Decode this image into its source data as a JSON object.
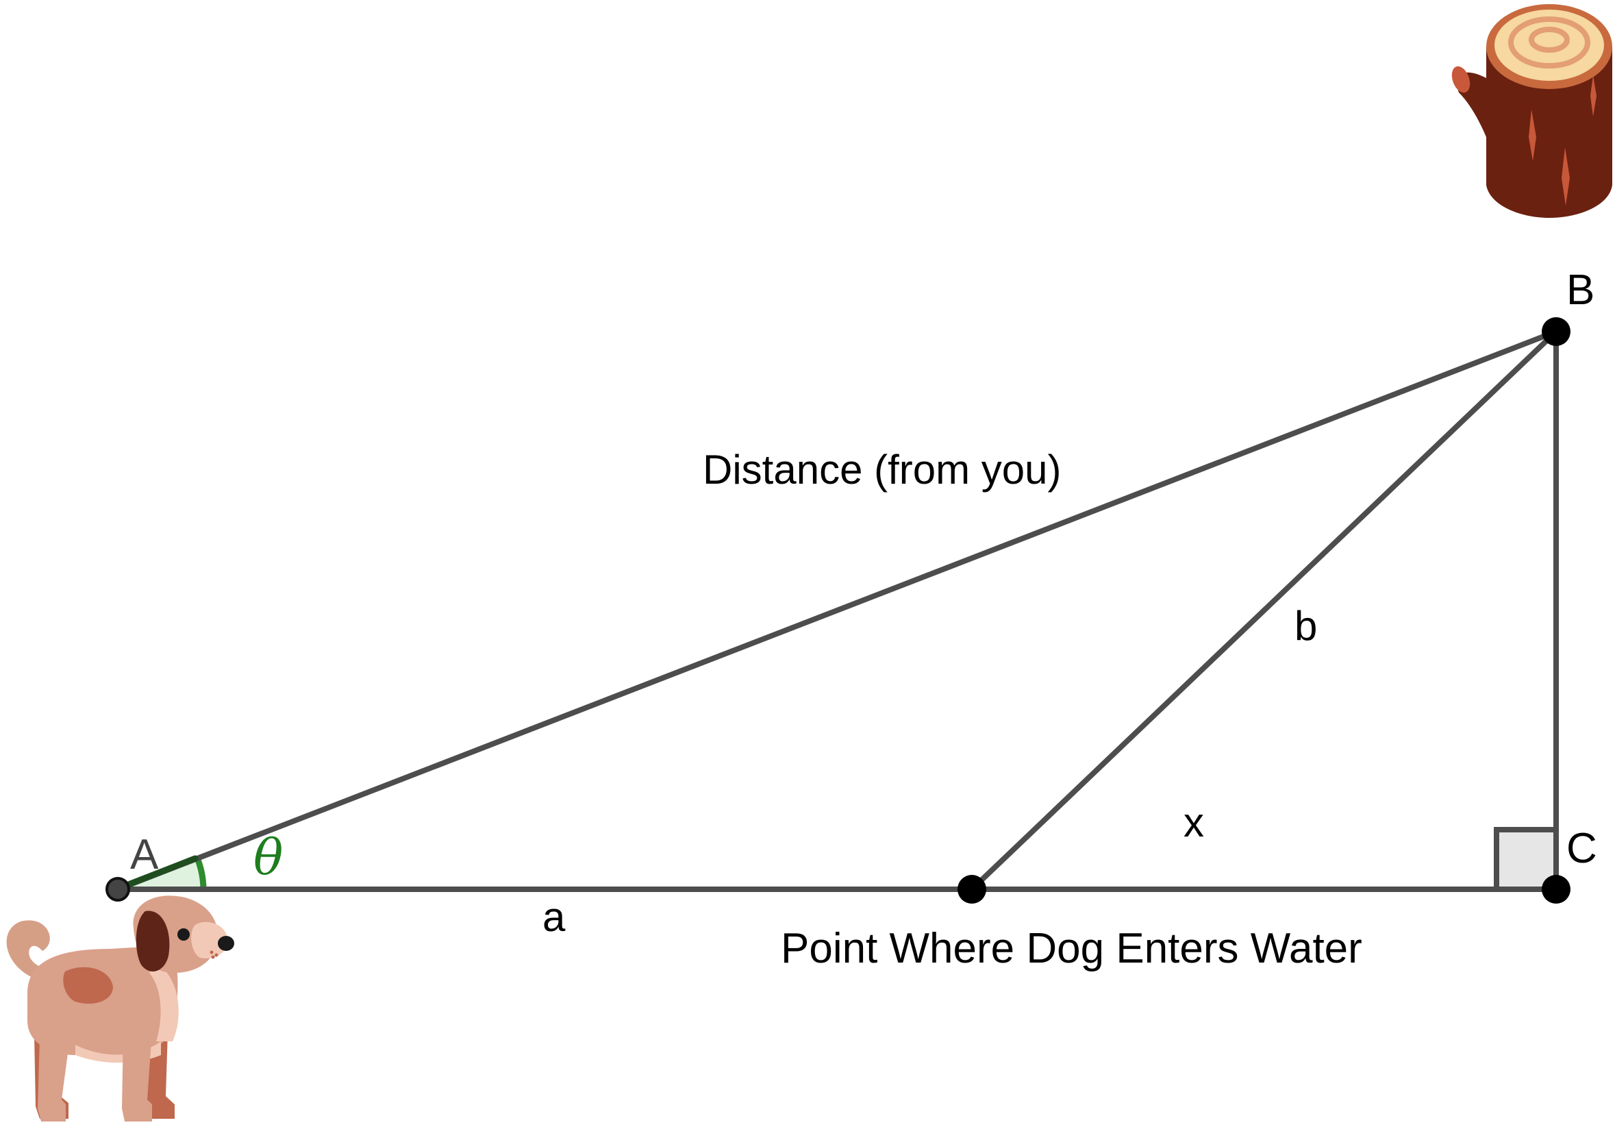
{
  "colors": {
    "segment": "#4d4d4d",
    "point": "#000000",
    "angle_mark": "#2e8b2e",
    "angle_fill": "#dff2df",
    "theta_text": "#1e7d1e",
    "right_angle_fill": "#e6e6e6"
  },
  "icons": {
    "dog": "dog-icon",
    "tree_stump": "tree-stump-icon"
  },
  "points": {
    "A": {
      "label": "A"
    },
    "B": {
      "label": "B"
    },
    "C": {
      "label": "C"
    }
  },
  "segments": {
    "AB": {
      "label": "Distance (from you)"
    },
    "a": {
      "label": "a"
    },
    "b": {
      "label": "b"
    },
    "x": {
      "label": "x"
    }
  },
  "angle": {
    "label": "θ"
  },
  "entry_point": {
    "label": "Point Where Dog Enters Water"
  }
}
